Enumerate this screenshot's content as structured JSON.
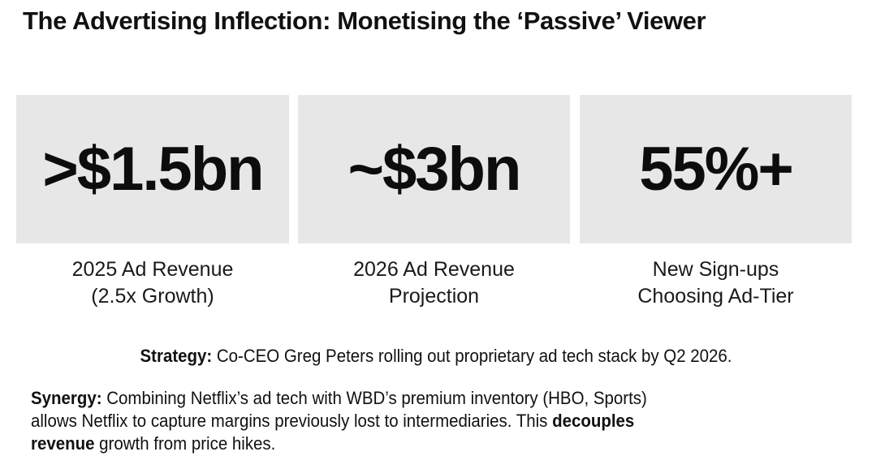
{
  "title": "The Advertising Inflection: Monetising the ‘Passive’ Viewer",
  "stats": [
    {
      "value": ">$1.5bn",
      "label_line1": "2025 Ad Revenue",
      "label_line2": "(2.5x Growth)"
    },
    {
      "value": "~$3bn",
      "label_line1": "2026 Ad Revenue",
      "label_line2": "Projection"
    },
    {
      "value": "55%+",
      "label_line1": "New Sign-ups",
      "label_line2": "Choosing Ad-Tier"
    }
  ],
  "strategy": {
    "label": "Strategy:",
    "text": " Co-CEO Greg Peters rolling out proprietary ad tech stack by Q2 2026."
  },
  "synergy": {
    "label": "Synergy:",
    "text_line1": " Combining Netflix’s ad tech with WBD’s premium inventory (HBO, Sports)",
    "text_line2": "allows Netflix to capture margins previously lost to intermediaries. This ",
    "bold_line2": "decouples",
    "bold_line3": "revenue",
    "text_line3": " growth from price hikes."
  }
}
